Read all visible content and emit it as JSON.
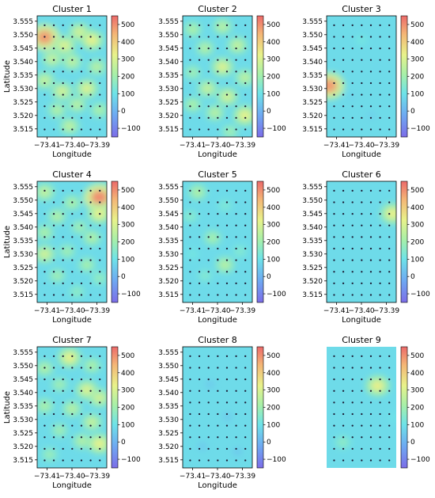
{
  "figure": {
    "xlabel": "Longitude",
    "ylabel": "Latitude",
    "xticks": [
      "−73.41",
      "−73.40",
      "−73.39"
    ],
    "yticks": [
      "3.555",
      "3.550",
      "3.545",
      "3.540",
      "3.535",
      "3.530",
      "3.525",
      "3.520",
      "3.515"
    ],
    "cbar_ticks": [
      "500",
      "400",
      "300",
      "200",
      "100",
      "0",
      "−100"
    ]
  },
  "chart_data": [
    {
      "type": "heatmap",
      "title": "Cluster 1",
      "xlim": [
        -73.414,
        -73.386
      ],
      "ylim": [
        3.512,
        3.557
      ],
      "clim": [
        -150,
        550
      ],
      "grid": false,
      "colormap": "jet",
      "hotspots": [
        {
          "x": -73.411,
          "y": 3.549,
          "v": 480
        },
        {
          "x": -73.403,
          "y": 3.546,
          "v": 300
        },
        {
          "x": -73.397,
          "y": 3.551,
          "v": 280
        },
        {
          "x": -73.392,
          "y": 3.548,
          "v": 320
        },
        {
          "x": -73.408,
          "y": 3.541,
          "v": 260
        },
        {
          "x": -73.4,
          "y": 3.54,
          "v": 250
        },
        {
          "x": -73.39,
          "y": 3.538,
          "v": 240
        },
        {
          "x": -73.411,
          "y": 3.533,
          "v": 260
        },
        {
          "x": -73.404,
          "y": 3.529,
          "v": 280
        },
        {
          "x": -73.394,
          "y": 3.53,
          "v": 300
        },
        {
          "x": -73.406,
          "y": 3.522,
          "v": 230
        },
        {
          "x": -73.398,
          "y": 3.524,
          "v": 240
        },
        {
          "x": -73.389,
          "y": 3.522,
          "v": 220
        },
        {
          "x": -73.401,
          "y": 3.516,
          "v": 250
        }
      ]
    },
    {
      "type": "heatmap",
      "title": "Cluster 2",
      "xlim": [
        -73.414,
        -73.386
      ],
      "ylim": [
        3.512,
        3.557
      ],
      "clim": [
        -150,
        550
      ],
      "grid": false,
      "colormap": "jet",
      "hotspots": [
        {
          "x": -73.41,
          "y": 3.552,
          "v": 220
        },
        {
          "x": -73.398,
          "y": 3.553,
          "v": 240
        },
        {
          "x": -73.392,
          "y": 3.546,
          "v": 260
        },
        {
          "x": -73.405,
          "y": 3.545,
          "v": 230
        },
        {
          "x": -73.398,
          "y": 3.538,
          "v": 300
        },
        {
          "x": -73.41,
          "y": 3.536,
          "v": 200
        },
        {
          "x": -73.389,
          "y": 3.534,
          "v": 250
        },
        {
          "x": -73.404,
          "y": 3.53,
          "v": 260
        },
        {
          "x": -73.396,
          "y": 3.527,
          "v": 280
        },
        {
          "x": -73.41,
          "y": 3.524,
          "v": 220
        },
        {
          "x": -73.401,
          "y": 3.521,
          "v": 240
        },
        {
          "x": -73.389,
          "y": 3.52,
          "v": 320
        },
        {
          "x": -73.395,
          "y": 3.514,
          "v": 200
        }
      ]
    },
    {
      "type": "heatmap",
      "title": "Cluster 3",
      "xlim": [
        -73.414,
        -73.386
      ],
      "ylim": [
        3.512,
        3.557
      ],
      "clim": [
        -150,
        550
      ],
      "grid": false,
      "colormap": "jet",
      "hotspots": [
        {
          "x": -73.413,
          "y": 3.531,
          "v": 480
        },
        {
          "x": -73.4,
          "y": 3.548,
          "v": 120
        },
        {
          "x": -73.406,
          "y": 3.552,
          "v": 90
        },
        {
          "x": -73.394,
          "y": 3.538,
          "v": 80
        },
        {
          "x": -73.404,
          "y": 3.527,
          "v": 70
        },
        {
          "x": -73.396,
          "y": 3.52,
          "v": 60
        }
      ]
    },
    {
      "type": "heatmap",
      "title": "Cluster 4",
      "xlim": [
        -73.414,
        -73.386
      ],
      "ylim": [
        3.512,
        3.557
      ],
      "clim": [
        -150,
        550
      ],
      "grid": false,
      "colormap": "jet",
      "hotspots": [
        {
          "x": -73.411,
          "y": 3.553,
          "v": 260
        },
        {
          "x": -73.389,
          "y": 3.551,
          "v": 500
        },
        {
          "x": -73.4,
          "y": 3.549,
          "v": 220
        },
        {
          "x": -73.406,
          "y": 3.544,
          "v": 230
        },
        {
          "x": -73.389,
          "y": 3.545,
          "v": 320
        },
        {
          "x": -73.411,
          "y": 3.538,
          "v": 220
        },
        {
          "x": -73.397,
          "y": 3.54,
          "v": 200
        },
        {
          "x": -73.392,
          "y": 3.536,
          "v": 230
        },
        {
          "x": -73.411,
          "y": 3.53,
          "v": 280
        },
        {
          "x": -73.402,
          "y": 3.531,
          "v": 200
        },
        {
          "x": -73.394,
          "y": 3.526,
          "v": 210
        },
        {
          "x": -73.406,
          "y": 3.522,
          "v": 200
        },
        {
          "x": -73.389,
          "y": 3.521,
          "v": 180
        },
        {
          "x": -73.398,
          "y": 3.516,
          "v": 170
        }
      ]
    },
    {
      "type": "heatmap",
      "title": "Cluster 5",
      "xlim": [
        -73.414,
        -73.386
      ],
      "ylim": [
        3.512,
        3.557
      ],
      "clim": [
        -150,
        550
      ],
      "grid": false,
      "colormap": "jet",
      "hotspots": [
        {
          "x": -73.408,
          "y": 3.553,
          "v": 230
        },
        {
          "x": -73.397,
          "y": 3.548,
          "v": 140
        },
        {
          "x": -73.411,
          "y": 3.544,
          "v": 160
        },
        {
          "x": -73.402,
          "y": 3.536,
          "v": 210
        },
        {
          "x": -73.397,
          "y": 3.526,
          "v": 240
        },
        {
          "x": -73.391,
          "y": 3.531,
          "v": 150
        },
        {
          "x": -73.405,
          "y": 3.522,
          "v": 150
        },
        {
          "x": -73.41,
          "y": 3.53,
          "v": 120
        }
      ]
    },
    {
      "type": "heatmap",
      "title": "Cluster 6",
      "xlim": [
        -73.414,
        -73.386
      ],
      "ylim": [
        3.512,
        3.557
      ],
      "clim": [
        -150,
        550
      ],
      "grid": false,
      "colormap": "jet",
      "hotspots": [
        {
          "x": -73.3875,
          "y": 3.545,
          "v": 330
        },
        {
          "x": -73.3875,
          "y": 3.532,
          "v": 80
        }
      ]
    },
    {
      "type": "heatmap",
      "title": "Cluster 7",
      "xlim": [
        -73.414,
        -73.386
      ],
      "ylim": [
        3.512,
        3.557
      ],
      "clim": [
        -150,
        550
      ],
      "grid": false,
      "colormap": "jet",
      "hotspots": [
        {
          "x": -73.401,
          "y": 3.553,
          "v": 320
        },
        {
          "x": -73.411,
          "y": 3.549,
          "v": 230
        },
        {
          "x": -73.392,
          "y": 3.55,
          "v": 220
        },
        {
          "x": -73.405,
          "y": 3.543,
          "v": 200
        },
        {
          "x": -73.394,
          "y": 3.541,
          "v": 300
        },
        {
          "x": -73.389,
          "y": 3.538,
          "v": 280
        },
        {
          "x": -73.411,
          "y": 3.535,
          "v": 220
        },
        {
          "x": -73.4,
          "y": 3.534,
          "v": 240
        },
        {
          "x": -73.392,
          "y": 3.529,
          "v": 260
        },
        {
          "x": -73.405,
          "y": 3.526,
          "v": 200
        },
        {
          "x": -73.396,
          "y": 3.522,
          "v": 230
        },
        {
          "x": -73.389,
          "y": 3.521,
          "v": 320
        },
        {
          "x": -73.409,
          "y": 3.517,
          "v": 190
        }
      ]
    },
    {
      "type": "heatmap",
      "title": "Cluster 8",
      "xlim": [
        -73.414,
        -73.386
      ],
      "ylim": [
        3.512,
        3.557
      ],
      "clim": [
        -150,
        550
      ],
      "grid": false,
      "colormap": "jet",
      "hotspots": [
        {
          "x": -73.403,
          "y": 3.543,
          "v": 40
        },
        {
          "x": -73.396,
          "y": 3.531,
          "v": 35
        },
        {
          "x": -73.406,
          "y": 3.52,
          "v": 35
        },
        {
          "x": -73.392,
          "y": 3.518,
          "v": 30
        }
      ]
    },
    {
      "type": "heatmap",
      "title": "Cluster 9",
      "xlim": [
        -73.414,
        -73.386
      ],
      "ylim": [
        3.512,
        3.557
      ],
      "clim": [
        -150,
        550
      ],
      "grid": false,
      "colormap": "jet",
      "hotspots": [
        {
          "x": -73.3935,
          "y": 3.5425,
          "v": 330
        },
        {
          "x": -73.4075,
          "y": 3.5215,
          "v": 170
        },
        {
          "x": -73.387,
          "y": 3.531,
          "v": 100
        }
      ]
    }
  ]
}
